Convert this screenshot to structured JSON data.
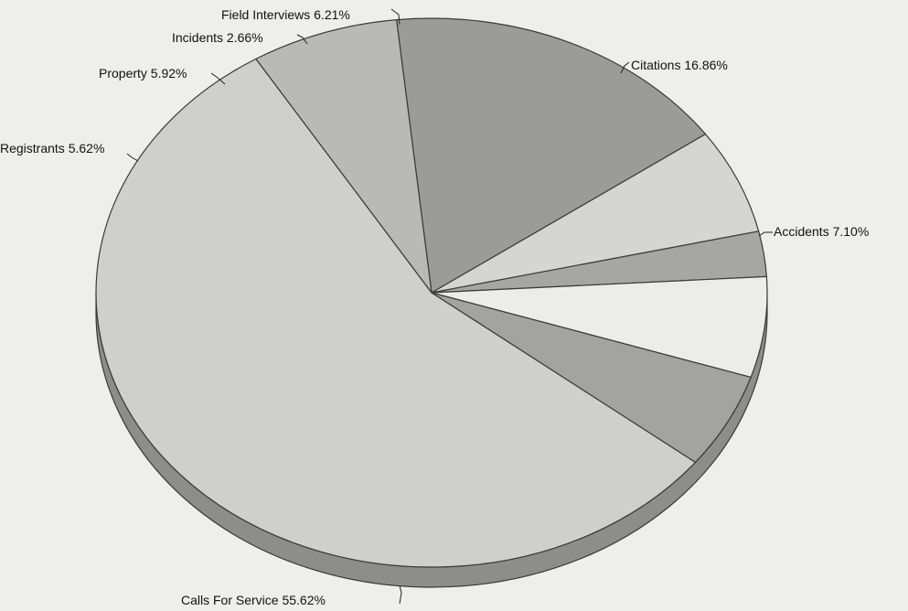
{
  "chart_data": {
    "type": "pie",
    "style": "3d-tilted",
    "slices": [
      {
        "label": "Citations",
        "value": 16.86,
        "text": "Citations 16.86%",
        "color": "#9b9b99"
      },
      {
        "label": "Field Interviews",
        "value": 6.21,
        "text": "Field Interviews 6.21%",
        "color": "#d5d5d3"
      },
      {
        "label": "Incidents",
        "value": 2.66,
        "text": "Incidents 2.66%",
        "color": "#a6a6a4"
      },
      {
        "label": "Property",
        "value": 5.92,
        "text": "Property 5.92%",
        "color": "#ececea"
      },
      {
        "label": "Registrants",
        "value": 5.62,
        "text": "Registrants 5.62%",
        "color": "#a3a3a1"
      },
      {
        "label": "Calls For Service",
        "value": 55.62,
        "text": "Calls For Service 55.62%",
        "color": "#cfcfcd"
      },
      {
        "label": "Accidents",
        "value": 7.1,
        "text": "Accidents 7.10%",
        "color": "#b9b9b7"
      }
    ]
  }
}
